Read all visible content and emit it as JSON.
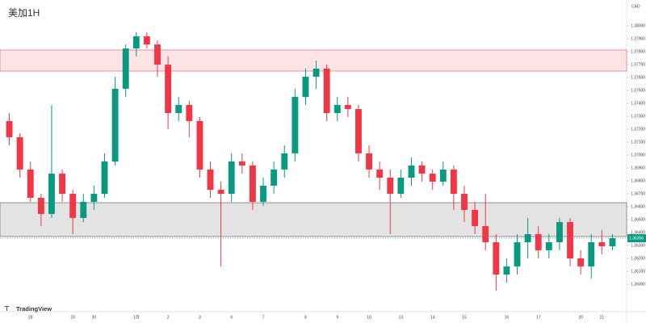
{
  "chart_data": {
    "type": "candlestick",
    "title": "美加1H",
    "currency": "CAD",
    "brand": "TradingView",
    "up_color": "#089981",
    "down_color": "#f23645",
    "grid": false,
    "ylim": [
      1.358,
      1.382
    ],
    "yticks": [
      {
        "value": 1.36,
        "label": "1.36000"
      },
      {
        "value": 1.361,
        "label": "1.36100"
      },
      {
        "value": 1.362,
        "label": "1.36200"
      },
      {
        "value": 1.363,
        "label": "1.36300"
      },
      {
        "value": 1.364,
        "label": "1.36400"
      },
      {
        "value": 1.365,
        "label": "1.36500"
      },
      {
        "value": 1.366,
        "label": "1.36600"
      },
      {
        "value": 1.367,
        "label": "1.36700"
      },
      {
        "value": 1.368,
        "label": "1.36800"
      },
      {
        "value": 1.369,
        "label": "1.36900"
      },
      {
        "value": 1.37,
        "label": "1.37000"
      },
      {
        "value": 1.371,
        "label": "1.37100"
      },
      {
        "value": 1.372,
        "label": "1.37200"
      },
      {
        "value": 1.373,
        "label": "1.37300"
      },
      {
        "value": 1.374,
        "label": "1.37400"
      },
      {
        "value": 1.375,
        "label": "1.37500"
      },
      {
        "value": 1.376,
        "label": "1.37600"
      },
      {
        "value": 1.377,
        "label": "1.37700"
      },
      {
        "value": 1.378,
        "label": "1.37800"
      },
      {
        "value": 1.379,
        "label": "1.37900"
      },
      {
        "value": 1.38,
        "label": "1.38000"
      }
    ],
    "zones": [
      {
        "from": 1.37813,
        "to": 1.3765,
        "color": "#fce4e6",
        "border": "#e07a80"
      },
      {
        "from": 1.36631,
        "to": 1.36369,
        "color": "#e3e3e3",
        "border": "#777777"
      }
    ],
    "categories": [
      null,
      null,
      "28",
      null,
      null,
      null,
      "29",
      null,
      "30",
      null,
      null,
      null,
      "1月",
      null,
      null,
      "2",
      null,
      null,
      "3",
      null,
      null,
      "6",
      null,
      null,
      "7",
      null,
      null,
      null,
      "8",
      null,
      null,
      "9",
      null,
      null,
      "10",
      null,
      null,
      "13",
      null,
      null,
      "14",
      null,
      null,
      "15",
      null,
      null,
      null,
      "16",
      null,
      null,
      "17",
      null,
      null,
      null,
      "20",
      null,
      "21",
      null
    ],
    "open": [
      1.37263,
      1.37138,
      1.36888,
      1.36669,
      1.36544,
      1.36856,
      1.367,
      1.36513,
      1.36638,
      1.367,
      1.3695,
      1.37513,
      1.37825,
      1.37919,
      1.37856,
      1.377,
      1.37325,
      1.37388,
      1.37263,
      1.36888,
      1.36731,
      1.367,
      1.3695,
      1.36919,
      1.36638,
      1.36763,
      1.36888,
      1.37013,
      1.3745,
      1.37606,
      1.37669,
      1.37325,
      1.37388,
      1.37356,
      1.37013,
      1.36888,
      1.36825,
      1.367,
      1.36825,
      1.36919,
      1.36856,
      1.36794,
      1.36888,
      1.367,
      1.36575,
      1.3645,
      1.36325,
      1.36075,
      1.36138,
      1.36325,
      1.36388,
      1.36263,
      1.36325,
      1.36481,
      1.362,
      1.36138,
      1.36325,
      1.36294
    ],
    "high": [
      1.37325,
      1.37169,
      1.3695,
      1.367,
      1.37388,
      1.36888,
      1.36731,
      1.367,
      1.36763,
      1.37013,
      1.37606,
      1.37856,
      1.3795,
      1.3795,
      1.37888,
      1.37763,
      1.3745,
      1.37419,
      1.37294,
      1.3695,
      1.36794,
      1.37013,
      1.37013,
      1.3695,
      1.36825,
      1.3695,
      1.37075,
      1.37513,
      1.37669,
      1.37731,
      1.377,
      1.3745,
      1.3745,
      1.37388,
      1.37075,
      1.3695,
      1.36888,
      1.36888,
      1.36981,
      1.3695,
      1.36888,
      1.3695,
      1.36919,
      1.36763,
      1.36638,
      1.367,
      1.36388,
      1.362,
      1.36388,
      1.36513,
      1.3645,
      1.36388,
      1.36513,
      1.36513,
      1.36263,
      1.36388,
      1.36419,
      1.36388
    ],
    "low": [
      1.37075,
      1.36825,
      1.36638,
      1.3645,
      1.36513,
      1.36638,
      1.36388,
      1.36481,
      1.36575,
      1.36669,
      1.36919,
      1.3745,
      1.37763,
      1.37825,
      1.37606,
      1.372,
      1.37263,
      1.37138,
      1.36825,
      1.36669,
      1.36138,
      1.36638,
      1.36856,
      1.36575,
      1.36606,
      1.367,
      1.36825,
      1.3695,
      1.37388,
      1.37513,
      1.37263,
      1.37263,
      1.37294,
      1.3695,
      1.36825,
      1.36731,
      1.36388,
      1.36669,
      1.36763,
      1.36794,
      1.36731,
      1.36763,
      1.36575,
      1.36481,
      1.36388,
      1.36263,
      1.3595,
      1.36013,
      1.36075,
      1.362,
      1.362,
      1.362,
      1.36263,
      1.36138,
      1.36075,
      1.36044,
      1.36231,
      1.36263
    ],
    "close": [
      1.37138,
      1.36888,
      1.36669,
      1.36544,
      1.36856,
      1.367,
      1.36513,
      1.36638,
      1.367,
      1.3695,
      1.37513,
      1.37825,
      1.37919,
      1.37856,
      1.377,
      1.37325,
      1.37388,
      1.37263,
      1.36888,
      1.36731,
      1.367,
      1.3695,
      1.36919,
      1.36638,
      1.36763,
      1.36888,
      1.37013,
      1.3745,
      1.37606,
      1.37669,
      1.37325,
      1.37388,
      1.37356,
      1.37013,
      1.36888,
      1.36825,
      1.367,
      1.36825,
      1.36919,
      1.36856,
      1.36794,
      1.36888,
      1.367,
      1.36575,
      1.3645,
      1.36325,
      1.36075,
      1.36138,
      1.36325,
      1.36388,
      1.36263,
      1.36325,
      1.36481,
      1.362,
      1.36138,
      1.36325,
      1.36294,
      1.36356
    ]
  }
}
